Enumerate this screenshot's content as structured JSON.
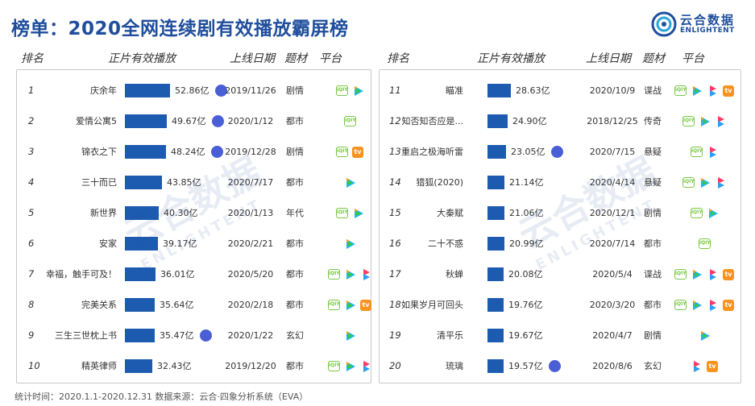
{
  "title": "榜单：2020全网连续剧有效播放霸屏榜",
  "logo": {
    "cn": "云合数据",
    "en": "ENLIGHTENT"
  },
  "headers": {
    "rank": "排名",
    "plays": "正片有效播放",
    "date": "上线日期",
    "genre": "题材",
    "platform": "平台"
  },
  "platform_labels": {
    "iqiyi": "iQIY",
    "mgtv": "tv"
  },
  "left_rows": [
    {
      "rank": "1",
      "name": "庆余年",
      "value": 52.86,
      "plays": "52.86亿",
      "wang": true,
      "date": "2019/11/26",
      "genre": "剧情",
      "platforms": [
        "iqiyi",
        "tencent"
      ]
    },
    {
      "rank": "2",
      "name": "爱情公寓5",
      "value": 49.67,
      "plays": "49.67亿",
      "wang": true,
      "date": "2020/1/12",
      "genre": "都市",
      "platforms": [
        "iqiyi"
      ]
    },
    {
      "rank": "3",
      "name": "锦衣之下",
      "value": 48.24,
      "plays": "48.24亿",
      "wang": true,
      "date": "2019/12/28",
      "genre": "剧情",
      "platforms": [
        "iqiyi",
        "mgtv"
      ]
    },
    {
      "rank": "4",
      "name": "三十而已",
      "value": 43.85,
      "plays": "43.85亿",
      "wang": false,
      "date": "2020/7/17",
      "genre": "都市",
      "platforms": [
        "tencent"
      ]
    },
    {
      "rank": "5",
      "name": "新世界",
      "value": 40.3,
      "plays": "40.30亿",
      "wang": false,
      "date": "2020/1/13",
      "genre": "年代",
      "platforms": [
        "iqiyi",
        "tencent"
      ]
    },
    {
      "rank": "6",
      "name": "安家",
      "value": 39.17,
      "plays": "39.17亿",
      "wang": false,
      "date": "2020/2/21",
      "genre": "都市",
      "platforms": [
        "tencent"
      ]
    },
    {
      "rank": "7",
      "name": "幸福，触手可及！",
      "value": 36.01,
      "plays": "36.01亿",
      "wang": false,
      "date": "2020/5/20",
      "genre": "都市",
      "platforms": [
        "iqiyi",
        "tencent",
        "youku"
      ]
    },
    {
      "rank": "8",
      "name": "完美关系",
      "value": 35.64,
      "plays": "35.64亿",
      "wang": false,
      "date": "2020/2/18",
      "genre": "都市",
      "platforms": [
        "iqiyi",
        "tencent",
        "mgtv"
      ]
    },
    {
      "rank": "9",
      "name": "三生三世枕上书",
      "value": 35.47,
      "plays": "35.47亿",
      "wang": true,
      "date": "2020/1/22",
      "genre": "玄幻",
      "platforms": [
        "tencent"
      ]
    },
    {
      "rank": "10",
      "name": "精英律师",
      "value": 32.43,
      "plays": "32.43亿",
      "wang": false,
      "date": "2019/12/20",
      "genre": "都市",
      "platforms": [
        "iqiyi",
        "tencent",
        "youku"
      ]
    }
  ],
  "right_rows": [
    {
      "rank": "11",
      "name": "瞄准",
      "value": 28.63,
      "plays": "28.63亿",
      "wang": false,
      "date": "2020/10/9",
      "genre": "谍战",
      "platforms": [
        "iqiyi",
        "tencent",
        "youku",
        "mgtv"
      ]
    },
    {
      "rank": "12",
      "name": "知否知否应是...",
      "value": 24.9,
      "plays": "24.90亿",
      "wang": false,
      "date": "2018/12/25",
      "genre": "传奇",
      "platforms": [
        "iqiyi",
        "tencent",
        "youku"
      ]
    },
    {
      "rank": "13",
      "name": "重启之极海听雷",
      "value": 23.05,
      "plays": "23.05亿",
      "wang": true,
      "date": "2020/7/15",
      "genre": "悬疑",
      "platforms": [
        "iqiyi",
        "youku"
      ]
    },
    {
      "rank": "14",
      "name": "猎狐(2020)",
      "value": 21.14,
      "plays": "21.14亿",
      "wang": false,
      "date": "2020/4/14",
      "genre": "悬疑",
      "platforms": [
        "iqiyi",
        "tencent",
        "youku"
      ]
    },
    {
      "rank": "15",
      "name": "大秦赋",
      "value": 21.06,
      "plays": "21.06亿",
      "wang": false,
      "date": "2020/12/1",
      "genre": "剧情",
      "platforms": [
        "iqiyi",
        "tencent"
      ]
    },
    {
      "rank": "16",
      "name": "二十不惑",
      "value": 20.99,
      "plays": "20.99亿",
      "wang": false,
      "date": "2020/7/14",
      "genre": "都市",
      "platforms": [
        "iqiyi"
      ]
    },
    {
      "rank": "17",
      "name": "秋蝉",
      "value": 20.08,
      "plays": "20.08亿",
      "wang": false,
      "date": "2020/5/4",
      "genre": "谍战",
      "platforms": [
        "iqiyi",
        "tencent",
        "youku",
        "mgtv"
      ]
    },
    {
      "rank": "18",
      "name": "如果岁月可回头",
      "value": 19.76,
      "plays": "19.76亿",
      "wang": false,
      "date": "2020/3/20",
      "genre": "都市",
      "platforms": [
        "iqiyi",
        "tencent",
        "youku",
        "mgtv"
      ]
    },
    {
      "rank": "19",
      "name": "清平乐",
      "value": 19.67,
      "plays": "19.67亿",
      "wang": false,
      "date": "2020/4/7",
      "genre": "剧情",
      "platforms": [
        "tencent"
      ]
    },
    {
      "rank": "20",
      "name": "琉璃",
      "value": 19.57,
      "plays": "19.57亿",
      "wang": true,
      "date": "2020/8/6",
      "genre": "玄幻",
      "platforms": [
        "youku",
        "mgtv"
      ]
    }
  ],
  "watermark_text": "云合数据",
  "watermark_en": "ENLIGHTENT",
  "footer": "统计时间：2020.1.1-2020.12.31    数据来源：云合·四象分析系统（EVA）",
  "colors": {
    "title": "#1f4e9c",
    "bar": "#1d5bb0",
    "iqiyi": "#7ac943",
    "tencent_a": "#1fb5f5",
    "tencent_b": "#ff9a1f",
    "youku_a": "#ff3a66",
    "youku_b": "#2a9df4",
    "mgtv": "#f7931e",
    "wang": "#4a5fd6"
  }
}
